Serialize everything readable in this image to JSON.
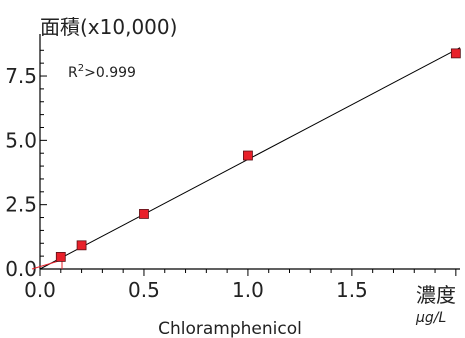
{
  "chart_data": {
    "type": "scatter",
    "xlabel": "Chloramphenicol",
    "ylabel": "面積(x10,000)",
    "x_unit_main": "濃度",
    "x_unit_sub": "μg/L",
    "annotation_prefix": "R",
    "annotation_sup": "2",
    "annotation_suffix": ">0.999",
    "xlim": [
      0,
      2.02
    ],
    "ylim": [
      0,
      8.9
    ],
    "x_ticks": [
      {
        "value": 0.0,
        "label": "0.0"
      },
      {
        "value": 0.5,
        "label": "0.5"
      },
      {
        "value": 1.0,
        "label": "1.0"
      },
      {
        "value": 1.5,
        "label": "1.5"
      }
    ],
    "y_ticks": [
      {
        "value": 0.0,
        "label": "0.0"
      },
      {
        "value": 2.5,
        "label": "2.5"
      },
      {
        "value": 5.0,
        "label": "5.0"
      },
      {
        "value": 7.5,
        "label": "7.5"
      }
    ],
    "series": [
      {
        "points": [
          {
            "x": 0.1,
            "y": 0.47
          },
          {
            "x": 0.2,
            "y": 0.92
          },
          {
            "x": 0.5,
            "y": 2.14
          },
          {
            "x": 1.0,
            "y": 4.41
          },
          {
            "x": 2.0,
            "y": 8.38
          }
        ],
        "marker_color": "#e8202a",
        "marker_edge": "#5a1016"
      }
    ],
    "fit_line": {
      "x0": 0.0,
      "y0": 0.0,
      "x1": 2.02,
      "y1": 8.6,
      "color": "#000000"
    },
    "zero_marker_color": "#e8202a",
    "grid": false
  }
}
